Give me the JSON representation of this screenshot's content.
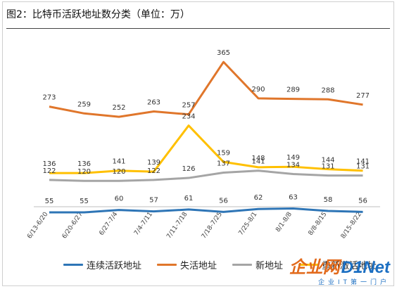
{
  "title": "图2：比特币活跃地址数分类（单位：万）",
  "chart_data": {
    "type": "line",
    "categories": [
      "6/13-6/20",
      "6/20-6/27",
      "6/27-7/4",
      "7/4-7/11",
      "7/11-7/18",
      "7/18-7/25",
      "7/25-8/1",
      "8/1-8/8",
      "8/8-8/15",
      "8/15-8/22"
    ],
    "series": [
      {
        "name": "连续活跃地址",
        "color": "#2e75b6",
        "values": [
          55,
          55,
          60,
          57,
          61,
          56,
          62,
          63,
          58,
          56
        ]
      },
      {
        "name": "失活地址",
        "color": "#e0762b",
        "values": [
          273,
          259,
          252,
          263,
          257,
          365,
          290,
          289,
          288,
          277
        ]
      },
      {
        "name": "新地址",
        "color": "#a5a5a5",
        "values": [
          122,
          120,
          120,
          122,
          126,
          137,
          141,
          134,
          131,
          131
        ]
      },
      {
        "name": "重新激活地址",
        "color": "#ffc000",
        "values": [
          136,
          136,
          141,
          139,
          234,
          159,
          148,
          149,
          144,
          141
        ]
      }
    ],
    "grid": false,
    "legend": "bottom"
  },
  "watermark": {
    "brand_cn": "企业网",
    "brand_en": "D1Net",
    "tagline": "企业IT第一门户"
  }
}
